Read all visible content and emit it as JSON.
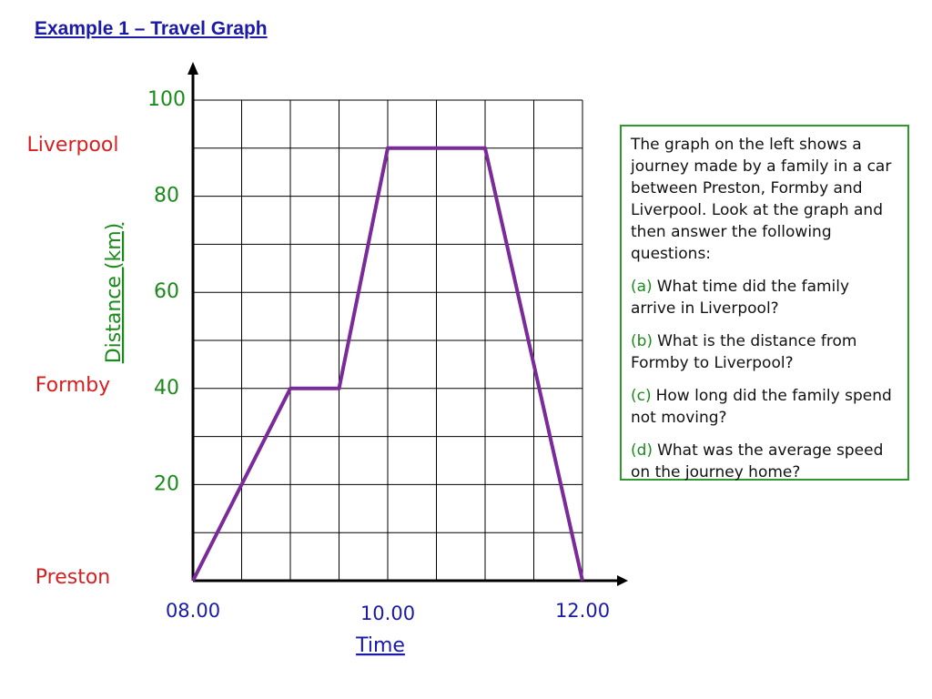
{
  "chart_data": {
    "type": "line",
    "title": "Example 1 – Travel Graph",
    "x_label": "Time",
    "y_label": "Distance (km)",
    "x": [
      8,
      9,
      9.5,
      10,
      11,
      12
    ],
    "values": [
      0,
      40,
      40,
      90,
      90,
      0
    ],
    "color": "#7b2a9a",
    "xlim": [
      8,
      12
    ],
    "ylim": [
      0,
      100
    ],
    "xticks": [
      {
        "value": 8,
        "label": "08.00"
      },
      {
        "value": 10,
        "label": "10.00"
      },
      {
        "value": 12,
        "label": "12.00"
      }
    ],
    "yticks": [
      20,
      40,
      60,
      80,
      100
    ],
    "x_minor_ticks": [
      8.5,
      9,
      9.5,
      10.5,
      11,
      11.5
    ],
    "y_minor_ticks": [
      10,
      30,
      50,
      70,
      90
    ],
    "grid": true,
    "place_labels": [
      {
        "label": "Liverpool",
        "value": 90
      },
      {
        "label": "Formby",
        "value": 40
      },
      {
        "label": "Preston",
        "value": 0
      }
    ]
  },
  "text_box": {
    "intro": "The graph on the left shows a journey made by a family in a car between Preston, Formby and Liverpool. Look at the graph and then answer the following questions:",
    "questions": [
      {
        "label": "(a)",
        "text": "What time did the family arrive in Liverpool?"
      },
      {
        "label": "(b)",
        "text": "What is the distance from Formby to Liverpool?"
      },
      {
        "label": "(c)",
        "text": "How long did the family spend not moving?"
      },
      {
        "label": "(d)",
        "text": "What was the average speed on the journey home?"
      }
    ]
  }
}
